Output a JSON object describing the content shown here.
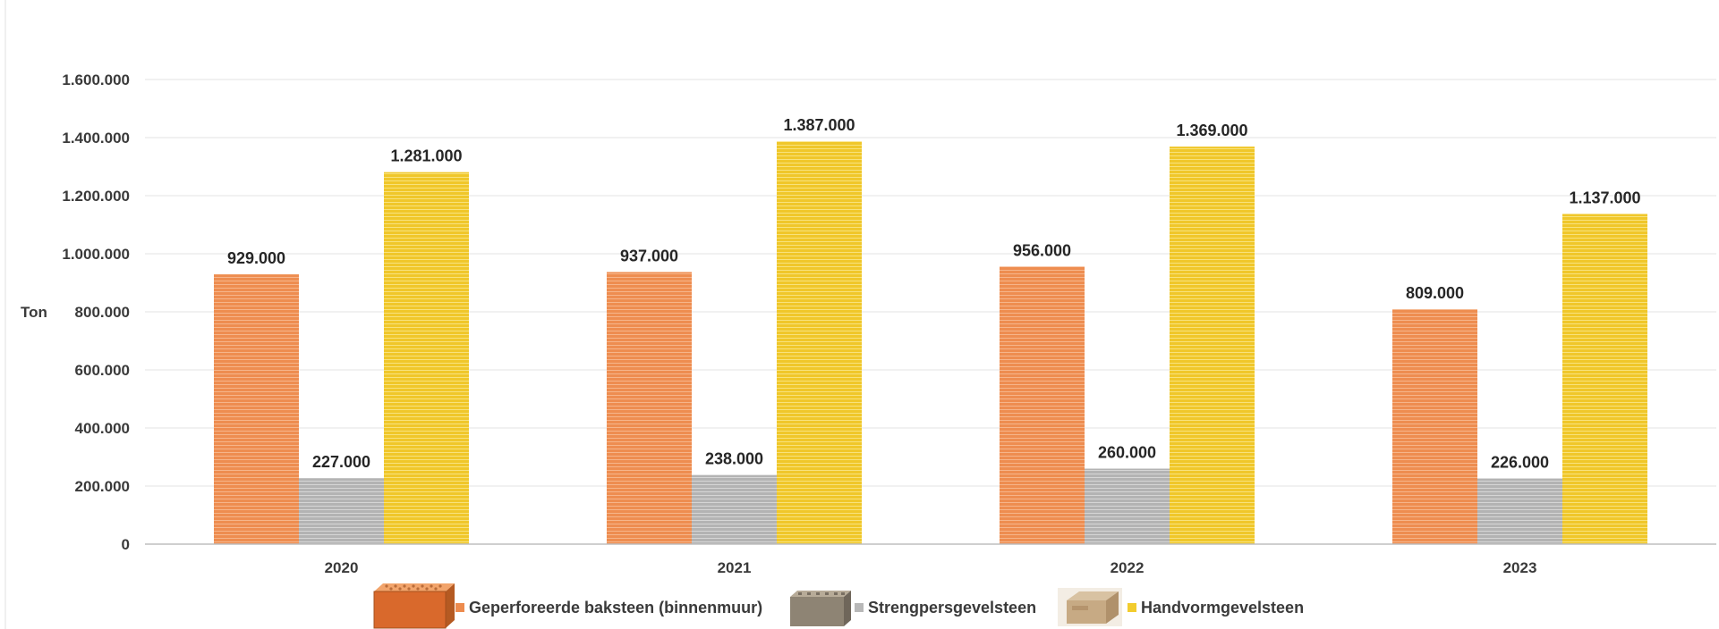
{
  "chart_data": {
    "type": "bar",
    "title": "",
    "xlabel": "",
    "ylabel": "Ton",
    "ylim": [
      0,
      1600000
    ],
    "yticks": [
      "0",
      "200.000",
      "400.000",
      "600.000",
      "800.000",
      "1.000.000",
      "1.200.000",
      "1.400.000",
      "1.600.000"
    ],
    "categories": [
      "2020",
      "2021",
      "2022",
      "2023"
    ],
    "grid": true,
    "legend_position": "bottom",
    "series": [
      {
        "name": "Geperforeerde baksteen (binnenmuur)",
        "color": "#ed8b4e",
        "values": [
          929000,
          937000,
          956000,
          809000
        ],
        "labels": [
          "929.000",
          "937.000",
          "956.000",
          "809.000"
        ],
        "legend_image": "orange-perforated-brick-icon"
      },
      {
        "name": "Strengpersgevelsteen",
        "color": "#b8b8b8",
        "values": [
          227000,
          238000,
          260000,
          226000
        ],
        "labels": [
          "227.000",
          "238.000",
          "260.000",
          "226.000"
        ],
        "legend_image": "grey-extruded-brick-icon"
      },
      {
        "name": "Handvormgevelsteen",
        "color": "#f2cc2e",
        "values": [
          1281000,
          1387000,
          1369000,
          1137000
        ],
        "labels": [
          "1.281.000",
          "1.387.000",
          "1.369.000",
          "1.137.000"
        ],
        "legend_image": "handmade-brick-icon"
      }
    ]
  }
}
